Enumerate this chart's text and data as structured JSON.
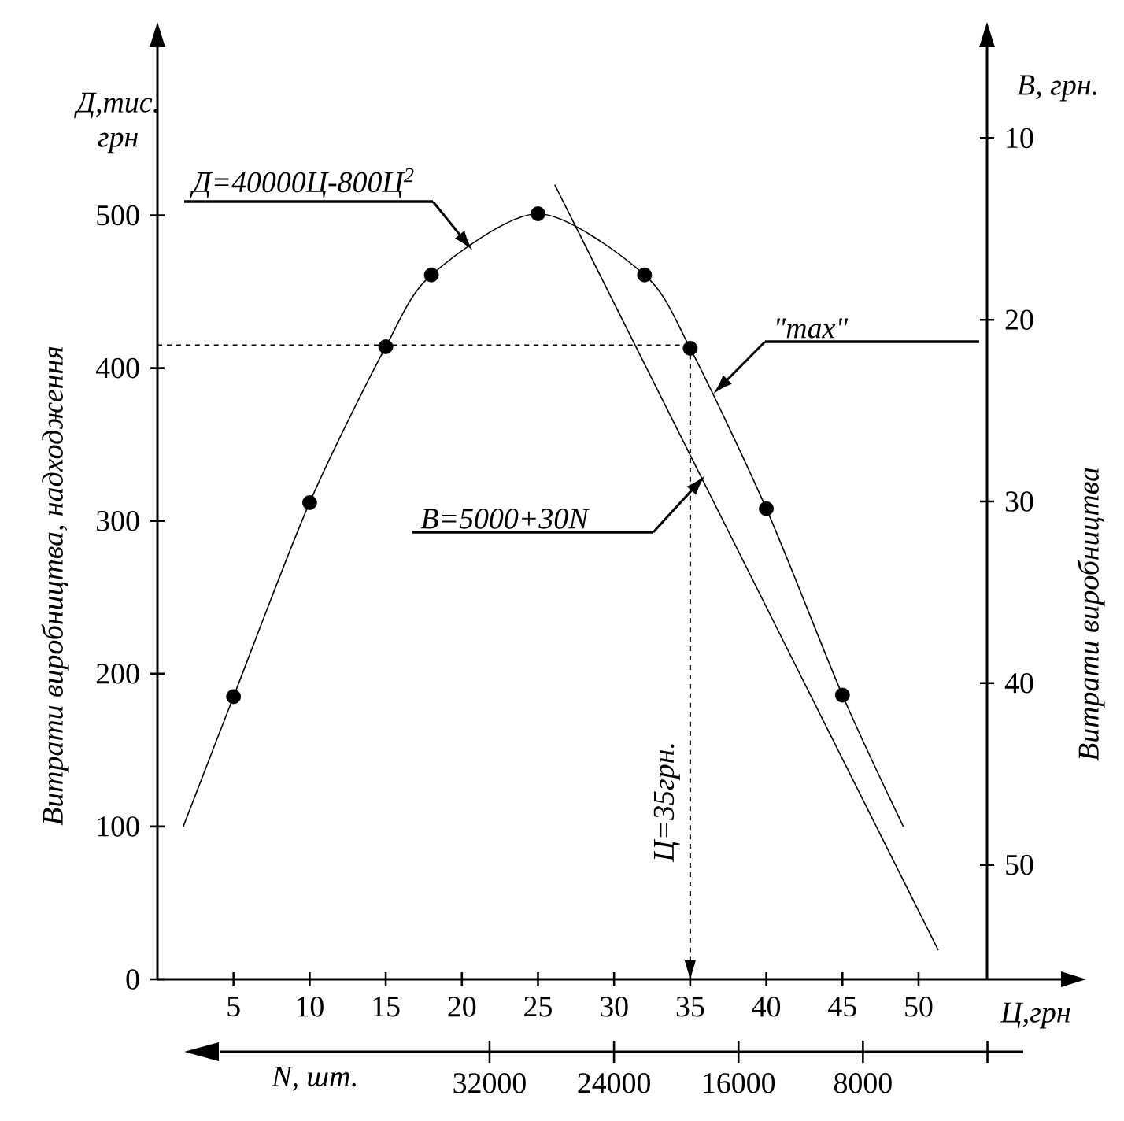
{
  "chart_data": {
    "type": "line",
    "ylabel": "Витрати виробництва, надходження",
    "y2label": "Витрати виробництва",
    "xlabel": "Ц,грн",
    "x2label": "N, шт.",
    "xlim": [
      0,
      54.5
    ],
    "xticks": [
      5,
      10,
      15,
      20,
      25,
      30,
      35,
      40,
      45,
      50
    ],
    "ylim": [
      0,
      610
    ],
    "yticks": [
      0,
      100,
      200,
      300,
      400,
      500
    ],
    "y2lim": [
      56.3,
      5.0
    ],
    "y2ticks": [
      10,
      20,
      30,
      40,
      50
    ],
    "x2lim": [
      49300,
      -2300
    ],
    "x2ticks": [
      {
        "value": 0,
        "label": null
      },
      8000,
      16000,
      24000,
      32000
    ],
    "series": [
      {
        "color": "#000000",
        "marker": "none",
        "x": [
          1.7,
          5,
          10,
          15,
          18,
          25,
          32,
          35,
          40,
          45,
          49
        ],
        "values": [
          100,
          185,
          312,
          414,
          461,
          501,
          461,
          413,
          308,
          186,
          100
        ]
      },
      {
        "type": "scatter",
        "color": "#000000",
        "marker": "circle",
        "x": [
          5,
          10,
          15,
          18,
          25,
          32,
          35,
          40,
          45
        ],
        "values": [
          185,
          312,
          414,
          461,
          501,
          461,
          413,
          308,
          186
        ]
      },
      {
        "color": "#000000",
        "marker": "none",
        "x": [
          26.1,
          51.3
        ],
        "values": [
          520,
          19
        ]
      }
    ],
    "ref_lines": [
      {
        "axis": "y",
        "value": 415,
        "line_style": "dashed"
      },
      {
        "axis": "x",
        "value": 35,
        "label": "Ц=35грн.",
        "line_style": "dashed"
      }
    ],
    "annotations": [
      "Д,тис. грн",
      "В, грн.",
      {
        "text": "Д=40000Ц-800Ц$^{2}$",
        "x": 20.7,
        "y": 477
      },
      {
        "text": "\"max\"",
        "x": 36.5,
        "y": 383
      },
      "В=5000+30N"
    ]
  }
}
